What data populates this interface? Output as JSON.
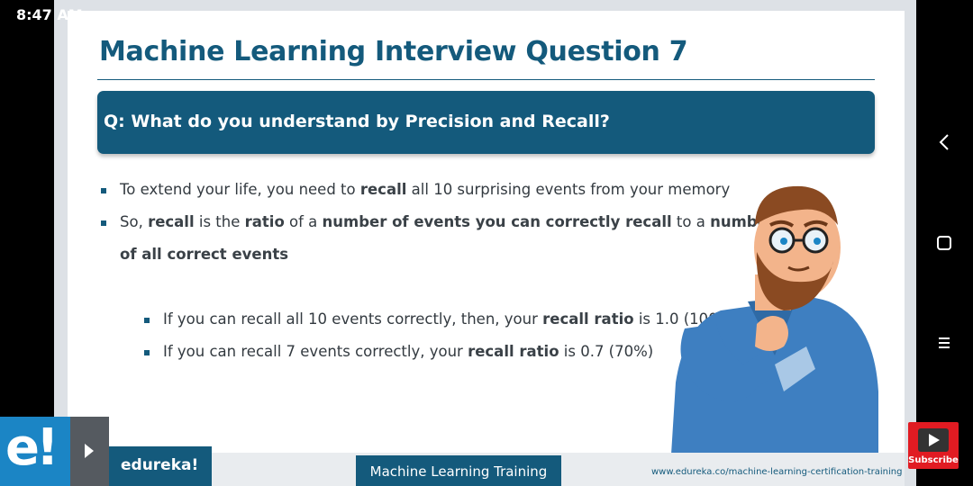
{
  "status_bar": {
    "time": "8:47 AM"
  },
  "slide": {
    "title": "Machine Learning Interview Question 7",
    "question": "Q: What do you understand by Precision and Recall?",
    "bullets": [
      {
        "parts": [
          {
            "text": "To extend your life, you need to ",
            "bold": false
          },
          {
            "text": "recall",
            "bold": true
          },
          {
            "text": " all 10 surprising events from your memory",
            "bold": false
          }
        ]
      },
      {
        "parts": [
          {
            "text": "So, ",
            "bold": false
          },
          {
            "text": "recall",
            "bold": true
          },
          {
            "text": " is the ",
            "bold": false
          },
          {
            "text": "ratio",
            "bold": true
          },
          {
            "text": " of a ",
            "bold": false
          },
          {
            "text": "number of events you can correctly recall",
            "bold": true
          },
          {
            "text": " to a ",
            "bold": false
          },
          {
            "text": "number",
            "bold": true
          }
        ],
        "continuation": [
          {
            "text": "of all correct events",
            "bold": true
          }
        ]
      }
    ],
    "sub_bullets": [
      {
        "parts": [
          {
            "text": "If you can recall all 10 events correctly, then, your ",
            "bold": false
          },
          {
            "text": "recall ratio",
            "bold": true
          },
          {
            "text": " is 1.0 (100%)",
            "bold": false
          }
        ]
      },
      {
        "parts": [
          {
            "text": "If you can recall 7 events correctly, your ",
            "bold": false
          },
          {
            "text": "recall ratio",
            "bold": true
          },
          {
            "text": " is 0.7 (70%)",
            "bold": false
          }
        ]
      }
    ]
  },
  "footer": {
    "brand": "edureka!",
    "course": "Machine Learning Training",
    "url": "www.edureka.co/machine-learning-certification-training"
  },
  "overlay": {
    "logo": "e!",
    "subscribe_label": "Subscribe",
    "play_icon": "play-icon"
  },
  "nav": {
    "back_icon": "back-chevron-icon",
    "home_icon": "home-square-icon",
    "menu_icon": "recent-apps-icon"
  },
  "colors": {
    "primary": "#145a7c",
    "logo_blue": "#1b85c5",
    "subscribe_red": "#e11b22"
  }
}
